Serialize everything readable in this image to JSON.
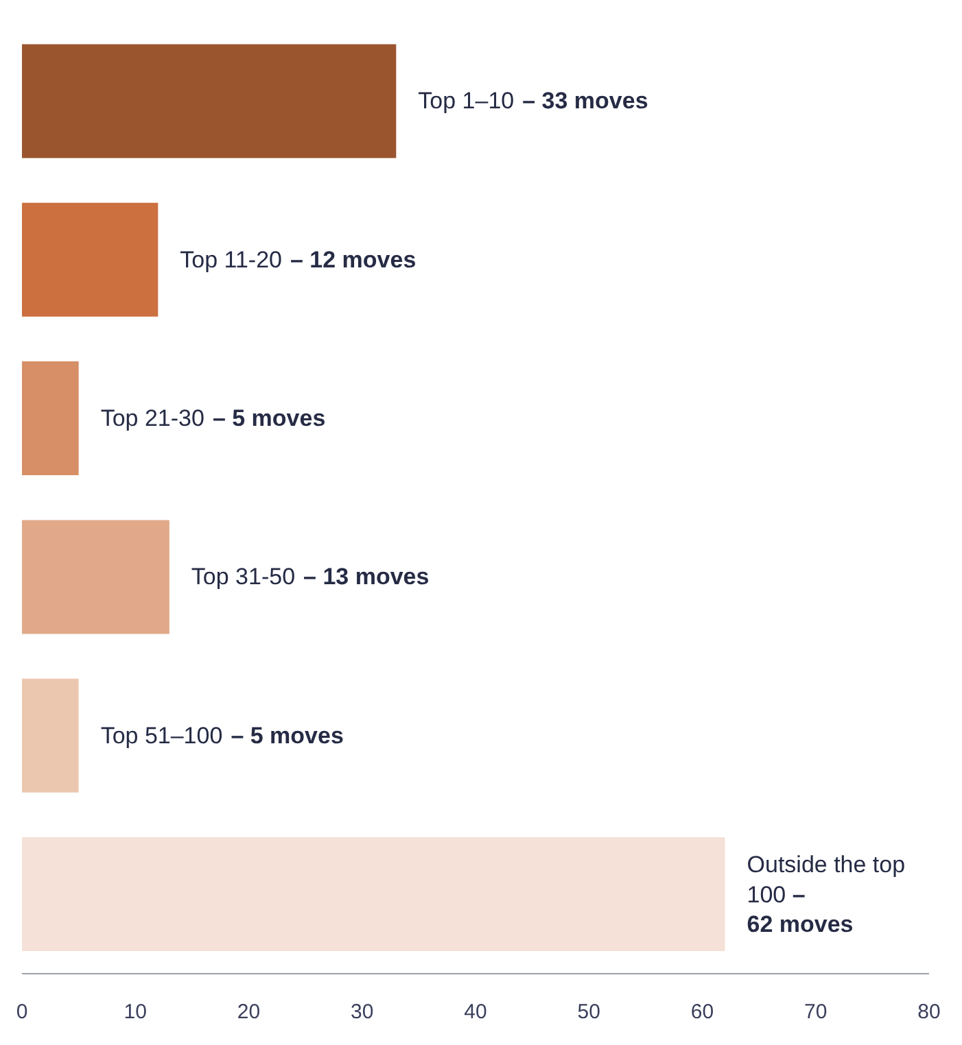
{
  "chart_data": {
    "type": "bar",
    "orientation": "horizontal",
    "categories": [
      "Top 1–10",
      "Top 11-20",
      "Top 21-30",
      "Top 31-50",
      "Top 51–100",
      "Outside the top 100"
    ],
    "values": [
      33,
      12,
      5,
      13,
      5,
      62
    ],
    "colors": [
      "#9a552f",
      "#cc703f",
      "#d68f66",
      "#e1a989",
      "#ecc7b0",
      "#f5e1d7"
    ],
    "annotations": [
      "– 33 moves",
      "– 12 moves",
      "– 5 moves",
      "– 13 moves",
      "– 5 moves",
      "– 62 moves"
    ],
    "xlim": [
      0,
      80
    ],
    "xticks": [
      0,
      10,
      20,
      30,
      40,
      50,
      60,
      70,
      80
    ],
    "grid": false
  }
}
